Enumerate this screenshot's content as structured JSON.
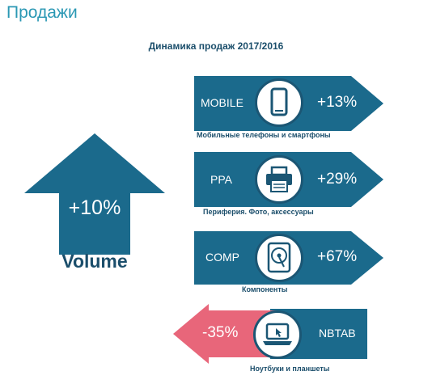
{
  "page": {
    "title": "Продажи",
    "subtitle": "Динамика продаж 2017/2016"
  },
  "summary": {
    "value": "+10%",
    "label": "Volume",
    "direction": "up"
  },
  "colors": {
    "teal": "#1b6a8c",
    "navy": "#1b4e6b",
    "negative": "#e8667a",
    "title": "#2b98b4"
  },
  "categories": [
    {
      "code": "MOBILE",
      "change": "+13%",
      "caption": "Мобильные телефоны и смартфоны",
      "icon": "smartphone-icon",
      "direction": "right"
    },
    {
      "code": "PPA",
      "change": "+29%",
      "caption": "Периферия. Фото, аксессуары",
      "icon": "printer-icon",
      "direction": "right"
    },
    {
      "code": "COMP",
      "change": "+67%",
      "caption": "Компоненты",
      "icon": "hard-drive-icon",
      "direction": "right"
    },
    {
      "code": "NBTAB",
      "change": "-35%",
      "caption": "Ноутбуки и планшеты",
      "icon": "laptop-icon",
      "direction": "left"
    }
  ]
}
